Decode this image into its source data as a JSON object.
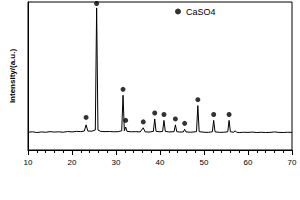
{
  "chart_data": {
    "type": "line",
    "y_label": "Intensity/(a.u.)",
    "xlim": [
      10,
      70
    ],
    "xticks": [
      10,
      20,
      30,
      40,
      50,
      60,
      70
    ],
    "ylim": [
      0,
      100
    ],
    "tick_labels": "x",
    "grid": false,
    "legend": "top",
    "series": [
      {
        "type": "line",
        "color": "#000000",
        "x": [
          10,
          11,
          12,
          13,
          14,
          15,
          16,
          17,
          18,
          19,
          20,
          21,
          22,
          22.8,
          23.2,
          23.6,
          24.5,
          25.3,
          25.6,
          25.9,
          26.5,
          27.5,
          28.5,
          29.5,
          30.5,
          31.3,
          31.6,
          31.9,
          32.2,
          32.5,
          33.5,
          34.5,
          35.5,
          36.2,
          36.6,
          37.5,
          38.5,
          38.8,
          39.1,
          40,
          40.6,
          40.9,
          41.2,
          42,
          43.2,
          43.5,
          43.8,
          44.5,
          45.3,
          45.6,
          45.9,
          47,
          48.3,
          48.6,
          48.9,
          50,
          51,
          51.9,
          52.2,
          52.5,
          53.5,
          54.5,
          55.4,
          55.7,
          56,
          56.8,
          57.1,
          57.4,
          58,
          59,
          60,
          61,
          62,
          63,
          64,
          65,
          66,
          67,
          68,
          69,
          70
        ],
        "values": [
          12,
          12.3,
          11.8,
          12.2,
          12,
          12.4,
          12.1,
          12.3,
          12,
          12.5,
          12.2,
          12.6,
          12.4,
          12.8,
          17,
          12.8,
          12.7,
          13.5,
          96,
          13.5,
          12.6,
          12.4,
          12.5,
          12.3,
          12.4,
          13,
          37,
          13,
          15.5,
          12.6,
          12.3,
          12.4,
          12.2,
          15,
          12.3,
          12.1,
          12.6,
          21,
          12.6,
          12.3,
          12.6,
          20,
          12.6,
          12.2,
          12.4,
          17,
          12.4,
          12.1,
          12.2,
          14,
          12.2,
          12,
          12.4,
          30,
          12.4,
          12,
          11.9,
          12.3,
          20,
          12.3,
          11.9,
          12,
          12.3,
          20,
          12.3,
          12,
          13,
          12,
          11.8,
          12,
          11.9,
          12.1,
          11.8,
          12,
          11.8,
          11.9,
          12.2,
          11.9,
          11.8,
          12,
          11.9
        ]
      },
      {
        "name": "CaSO4",
        "type": "scatter",
        "marker": "circle",
        "color": "#000000",
        "x": [
          23.2,
          25.6,
          31.6,
          32.2,
          36.2,
          38.8,
          40.9,
          43.5,
          45.6,
          48.6,
          52.2,
          55.7
        ],
        "values": [
          22,
          99,
          41,
          20,
          19,
          25,
          24,
          21,
          18,
          34,
          24,
          24
        ]
      }
    ]
  }
}
